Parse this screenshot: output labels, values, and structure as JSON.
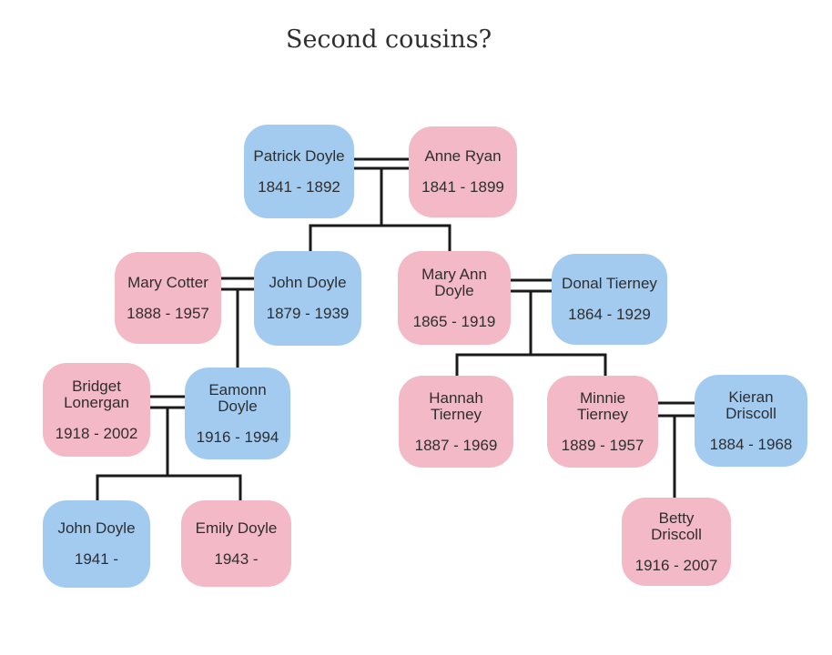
{
  "title": "Second cousins?",
  "colors": {
    "male": "#a3cbf0",
    "female": "#f3b9c6",
    "lines": "#1a1a1a"
  },
  "people": {
    "patrick_doyle": {
      "name": "Patrick Doyle",
      "years": "1841 - 1892",
      "gender": "male"
    },
    "anne_ryan": {
      "name": "Anne Ryan",
      "years": "1841 - 1899",
      "gender": "female"
    },
    "mary_cotter": {
      "name": "Mary Cotter",
      "years": "1888 - 1957",
      "gender": "female"
    },
    "john_doyle_1879": {
      "name": "John Doyle",
      "years": "1879 - 1939",
      "gender": "male"
    },
    "mary_ann_doyle": {
      "name": "Mary Ann\nDoyle",
      "years": "1865 - 1919",
      "gender": "female"
    },
    "donal_tierney": {
      "name": "Donal Tierney",
      "years": "1864 - 1929",
      "gender": "male"
    },
    "bridget_lonergan": {
      "name": "Bridget\nLonergan",
      "years": "1918 - 2002",
      "gender": "female"
    },
    "eamonn_doyle": {
      "name": "Eamonn\nDoyle",
      "years": "1916 - 1994",
      "gender": "male"
    },
    "hannah_tierney": {
      "name": "Hannah\nTierney",
      "years": "1887 - 1969",
      "gender": "female"
    },
    "minnie_tierney": {
      "name": "Minnie\nTierney",
      "years": "1889 - 1957",
      "gender": "female"
    },
    "kieran_driscoll": {
      "name": "Kieran\nDriscoll",
      "years": "1884 - 1968",
      "gender": "male"
    },
    "john_doyle_1941": {
      "name": "John Doyle",
      "years": "1941 -",
      "gender": "male"
    },
    "emily_doyle": {
      "name": "Emily Doyle",
      "years": "1943 -",
      "gender": "female"
    },
    "betty_driscoll": {
      "name": "Betty\nDriscoll",
      "years": "1916 - 2007",
      "gender": "female"
    }
  }
}
